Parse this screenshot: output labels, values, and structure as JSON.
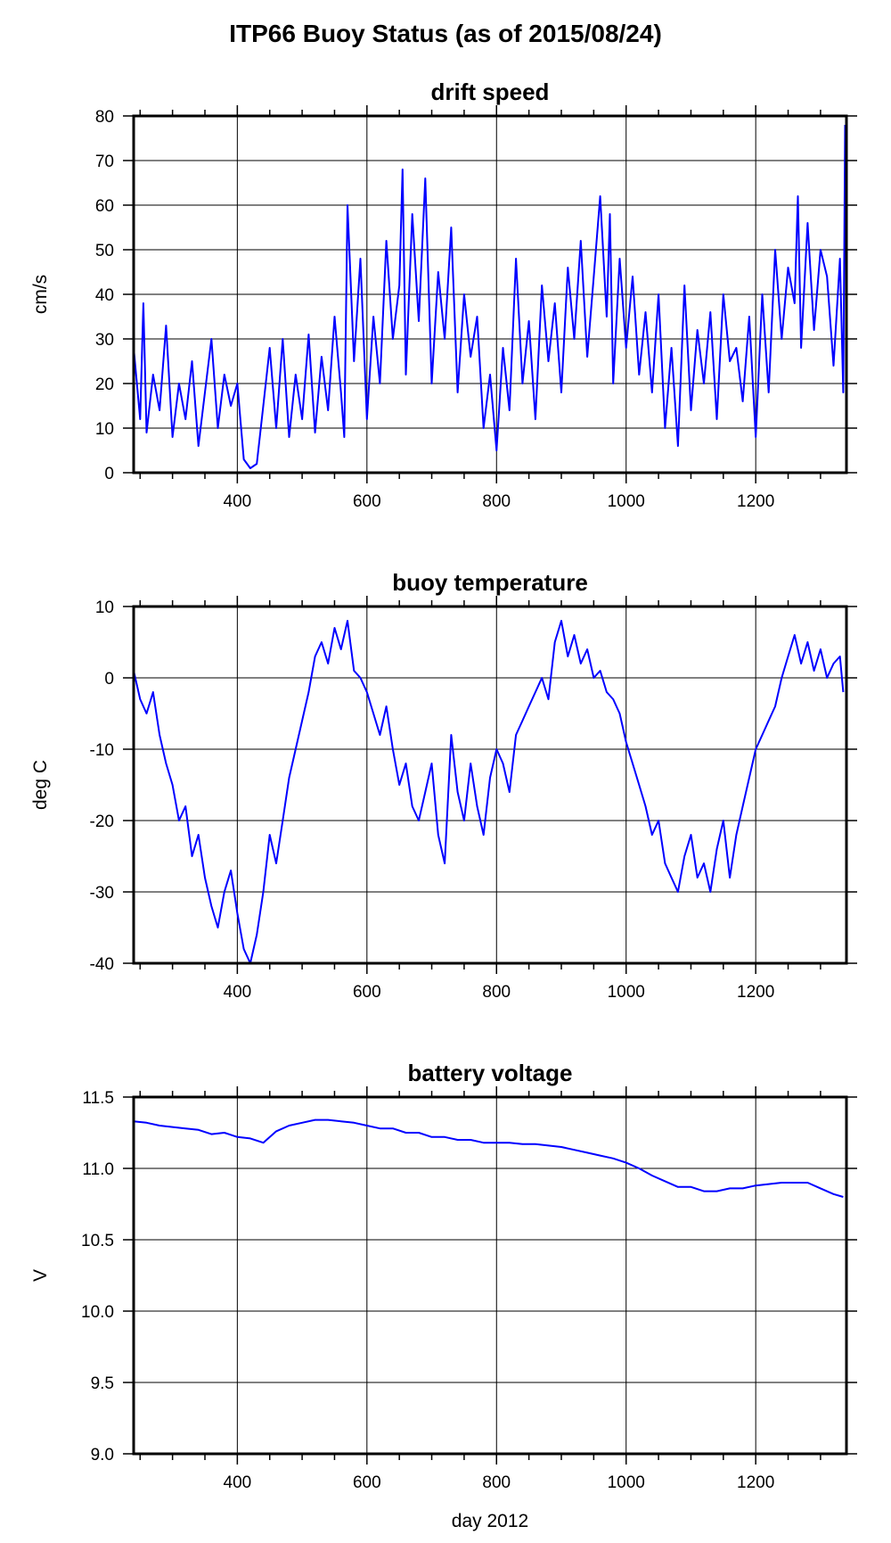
{
  "figure": {
    "title": "ITP66 Buoy Status (as of 2015/08/24)",
    "line_color": "#0000ff",
    "xlabel": "day 2012"
  },
  "chart_data": [
    {
      "type": "line",
      "title": "drift speed",
      "xlabel": "",
      "ylabel": "cm/s",
      "xlim": [
        240,
        1340
      ],
      "ylim": [
        0,
        80
      ],
      "xticks": [
        400,
        600,
        800,
        1000,
        1200
      ],
      "yticks": [
        0,
        10,
        20,
        30,
        40,
        50,
        60,
        70,
        80
      ],
      "ytick_labels": [
        "0",
        "10",
        "20",
        "30",
        "40",
        "50",
        "60",
        "70",
        "80"
      ],
      "grid": true,
      "series": [
        {
          "x": [
            240,
            250,
            255,
            260,
            270,
            280,
            290,
            300,
            310,
            320,
            330,
            340,
            350,
            360,
            370,
            380,
            390,
            400,
            410,
            420,
            430,
            440,
            450,
            460,
            470,
            480,
            490,
            500,
            510,
            520,
            530,
            540,
            550,
            560,
            565,
            570,
            580,
            590,
            600,
            610,
            620,
            630,
            640,
            650,
            655,
            660,
            670,
            680,
            690,
            700,
            710,
            720,
            730,
            740,
            750,
            760,
            770,
            780,
            790,
            800,
            810,
            820,
            830,
            840,
            850,
            860,
            870,
            880,
            890,
            900,
            910,
            920,
            930,
            940,
            950,
            960,
            970,
            975,
            980,
            990,
            1000,
            1010,
            1020,
            1030,
            1040,
            1050,
            1060,
            1070,
            1080,
            1090,
            1100,
            1110,
            1120,
            1130,
            1140,
            1150,
            1160,
            1170,
            1180,
            1190,
            1200,
            1210,
            1220,
            1230,
            1240,
            1250,
            1260,
            1265,
            1270,
            1280,
            1290,
            1300,
            1310,
            1320,
            1330,
            1335,
            1338
          ],
          "y": [
            28,
            12,
            38,
            9,
            22,
            14,
            33,
            8,
            20,
            12,
            25,
            6,
            18,
            30,
            10,
            22,
            15,
            20,
            3,
            1,
            2,
            15,
            28,
            10,
            30,
            8,
            22,
            12,
            31,
            9,
            26,
            14,
            35,
            18,
            8,
            60,
            25,
            48,
            12,
            35,
            20,
            52,
            30,
            42,
            68,
            22,
            58,
            34,
            66,
            20,
            45,
            30,
            55,
            18,
            40,
            26,
            35,
            10,
            22,
            5,
            28,
            14,
            48,
            20,
            34,
            12,
            42,
            25,
            38,
            18,
            46,
            30,
            52,
            26,
            44,
            62,
            35,
            58,
            20,
            48,
            28,
            44,
            22,
            36,
            18,
            40,
            10,
            28,
            6,
            42,
            14,
            32,
            20,
            36,
            12,
            40,
            25,
            28,
            16,
            35,
            8,
            40,
            18,
            50,
            30,
            46,
            38,
            62,
            28,
            56,
            32,
            50,
            44,
            24,
            48,
            18,
            78
          ]
        }
      ]
    },
    {
      "type": "line",
      "title": "buoy temperature",
      "xlabel": "",
      "ylabel": "deg C",
      "xlim": [
        240,
        1340
      ],
      "ylim": [
        -40,
        10
      ],
      "xticks": [
        400,
        600,
        800,
        1000,
        1200
      ],
      "yticks": [
        -40,
        -30,
        -20,
        -10,
        0,
        10
      ],
      "ytick_labels": [
        "-40",
        "-30",
        "-20",
        "-10",
        "0",
        "10"
      ],
      "grid": true,
      "series": [
        {
          "x": [
            240,
            250,
            260,
            270,
            280,
            290,
            300,
            310,
            320,
            330,
            340,
            350,
            360,
            370,
            380,
            390,
            400,
            410,
            420,
            430,
            440,
            450,
            460,
            470,
            480,
            490,
            500,
            510,
            520,
            530,
            540,
            550,
            560,
            570,
            580,
            590,
            600,
            610,
            620,
            630,
            640,
            650,
            660,
            670,
            680,
            690,
            700,
            710,
            720,
            730,
            740,
            750,
            760,
            770,
            780,
            790,
            800,
            810,
            820,
            830,
            840,
            850,
            860,
            870,
            880,
            890,
            900,
            910,
            920,
            930,
            940,
            950,
            960,
            970,
            980,
            990,
            1000,
            1010,
            1020,
            1030,
            1040,
            1050,
            1060,
            1070,
            1080,
            1090,
            1100,
            1110,
            1120,
            1130,
            1140,
            1150,
            1160,
            1170,
            1180,
            1190,
            1200,
            1210,
            1220,
            1230,
            1240,
            1250,
            1260,
            1270,
            1280,
            1290,
            1300,
            1310,
            1320,
            1330,
            1335
          ],
          "y": [
            1,
            -3,
            -5,
            -2,
            -8,
            -12,
            -15,
            -20,
            -18,
            -25,
            -22,
            -28,
            -32,
            -35,
            -30,
            -27,
            -33,
            -38,
            -40,
            -36,
            -30,
            -22,
            -26,
            -20,
            -14,
            -10,
            -6,
            -2,
            3,
            5,
            2,
            7,
            4,
            8,
            1,
            0,
            -2,
            -5,
            -8,
            -4,
            -10,
            -15,
            -12,
            -18,
            -20,
            -16,
            -12,
            -22,
            -26,
            -8,
            -16,
            -20,
            -12,
            -18,
            -22,
            -14,
            -10,
            -12,
            -16,
            -8,
            -6,
            -4,
            -2,
            0,
            -3,
            5,
            8,
            3,
            6,
            2,
            4,
            0,
            1,
            -2,
            -3,
            -5,
            -9,
            -12,
            -15,
            -18,
            -22,
            -20,
            -26,
            -28,
            -30,
            -25,
            -22,
            -28,
            -26,
            -30,
            -24,
            -20,
            -28,
            -22,
            -18,
            -14,
            -10,
            -8,
            -6,
            -4,
            0,
            3,
            6,
            2,
            5,
            1,
            4,
            0,
            2,
            3,
            -2
          ]
        }
      ]
    },
    {
      "type": "line",
      "title": "battery voltage",
      "xlabel": "day 2012",
      "ylabel": "V",
      "xlim": [
        240,
        1340
      ],
      "ylim": [
        9.0,
        11.5
      ],
      "xticks": [
        400,
        600,
        800,
        1000,
        1200
      ],
      "yticks": [
        9.0,
        9.5,
        10.0,
        10.5,
        11.0,
        11.5
      ],
      "ytick_labels": [
        "9.0",
        "9.5",
        "10.0",
        "10.5",
        "11.0",
        "11.5"
      ],
      "grid": true,
      "series": [
        {
          "x": [
            240,
            260,
            280,
            300,
            320,
            340,
            360,
            380,
            400,
            420,
            440,
            460,
            480,
            500,
            520,
            540,
            560,
            580,
            600,
            620,
            640,
            660,
            680,
            700,
            720,
            740,
            760,
            780,
            800,
            820,
            840,
            860,
            880,
            900,
            920,
            940,
            960,
            980,
            1000,
            1020,
            1040,
            1060,
            1080,
            1100,
            1120,
            1140,
            1160,
            1180,
            1200,
            1220,
            1240,
            1260,
            1280,
            1300,
            1320,
            1335
          ],
          "y": [
            11.33,
            11.32,
            11.3,
            11.29,
            11.28,
            11.27,
            11.24,
            11.25,
            11.22,
            11.21,
            11.18,
            11.26,
            11.3,
            11.32,
            11.34,
            11.34,
            11.33,
            11.32,
            11.3,
            11.28,
            11.28,
            11.25,
            11.25,
            11.22,
            11.22,
            11.2,
            11.2,
            11.18,
            11.18,
            11.18,
            11.17,
            11.17,
            11.16,
            11.15,
            11.13,
            11.11,
            11.09,
            11.07,
            11.04,
            11.0,
            10.95,
            10.91,
            10.87,
            10.87,
            10.84,
            10.84,
            10.86,
            10.86,
            10.88,
            10.89,
            10.9,
            10.9,
            10.9,
            10.86,
            10.82,
            10.8
          ]
        }
      ]
    }
  ]
}
